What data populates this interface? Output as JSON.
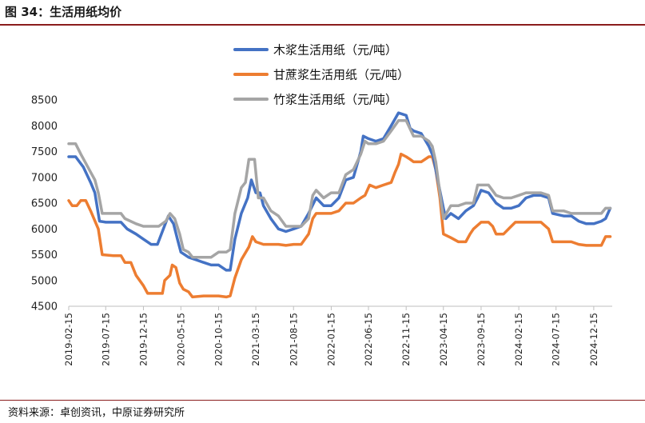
{
  "figure": {
    "title": "图 34：生活用纸均价",
    "source": "资料来源：卓创资讯，中原证券研究所"
  },
  "chart_data": {
    "type": "line",
    "title": "生活用纸均价",
    "xlabel": "",
    "ylabel": "",
    "ylim": [
      4500,
      8500
    ],
    "yticks": [
      4500,
      5000,
      5500,
      6000,
      6500,
      7000,
      7500,
      8000,
      8500
    ],
    "xticks": [
      "2019-02-15",
      "2019-07-15",
      "2019-12-15",
      "2020-05-15",
      "2020-10-15",
      "2021-03-15",
      "2021-08-15",
      "2022-01-15",
      "2022-06-15",
      "2022-11-15",
      "2023-04-15",
      "2023-09-15",
      "2024-02-15",
      "2024-07-15",
      "2024-12-15"
    ],
    "x_range": [
      "2019-02-15",
      "2025-02-28"
    ],
    "legend_position": "top-center",
    "grid": false,
    "series": [
      {
        "name": "木浆生活用纸（元/吨）",
        "color": "#4472C4",
        "points": [
          [
            "2019-02-15",
            7400
          ],
          [
            "2019-03-15",
            7400
          ],
          [
            "2019-04-15",
            7200
          ],
          [
            "2019-05-15",
            6900
          ],
          [
            "2019-06-01",
            6700
          ],
          [
            "2019-06-20",
            6150
          ],
          [
            "2019-07-15",
            6130
          ],
          [
            "2019-09-15",
            6130
          ],
          [
            "2019-10-10",
            6000
          ],
          [
            "2019-11-15",
            5900
          ],
          [
            "2019-12-15",
            5800
          ],
          [
            "2020-01-15",
            5700
          ],
          [
            "2020-02-10",
            5700
          ],
          [
            "2020-03-05",
            6000
          ],
          [
            "2020-03-25",
            6250
          ],
          [
            "2020-04-15",
            6100
          ],
          [
            "2020-05-01",
            5800
          ],
          [
            "2020-05-15",
            5550
          ],
          [
            "2020-06-15",
            5450
          ],
          [
            "2020-07-15",
            5400
          ],
          [
            "2020-08-15",
            5350
          ],
          [
            "2020-09-15",
            5300
          ],
          [
            "2020-10-15",
            5300
          ],
          [
            "2020-11-15",
            5200
          ],
          [
            "2020-12-01",
            5200
          ],
          [
            "2020-12-20",
            5800
          ],
          [
            "2021-01-15",
            6300
          ],
          [
            "2021-02-10",
            6600
          ],
          [
            "2021-02-25",
            6950
          ],
          [
            "2021-03-15",
            6700
          ],
          [
            "2021-04-01",
            6700
          ],
          [
            "2021-04-15",
            6450
          ],
          [
            "2021-05-15",
            6200
          ],
          [
            "2021-06-15",
            6000
          ],
          [
            "2021-07-15",
            5950
          ],
          [
            "2021-08-15",
            6000
          ],
          [
            "2021-09-15",
            6050
          ],
          [
            "2021-10-15",
            6300
          ],
          [
            "2021-11-15",
            6600
          ],
          [
            "2021-12-15",
            6450
          ],
          [
            "2022-01-15",
            6450
          ],
          [
            "2022-02-15",
            6600
          ],
          [
            "2022-03-15",
            6950
          ],
          [
            "2022-04-15",
            7000
          ],
          [
            "2022-05-15",
            7500
          ],
          [
            "2022-05-25",
            7800
          ],
          [
            "2022-06-15",
            7750
          ],
          [
            "2022-07-15",
            7700
          ],
          [
            "2022-08-15",
            7750
          ],
          [
            "2022-09-15",
            8000
          ],
          [
            "2022-10-15",
            8250
          ],
          [
            "2022-11-15",
            8200
          ],
          [
            "2022-12-01",
            7950
          ],
          [
            "2022-12-15",
            7900
          ],
          [
            "2023-01-15",
            7850
          ],
          [
            "2023-02-15",
            7600
          ],
          [
            "2023-03-05",
            7400
          ],
          [
            "2023-03-25",
            6900
          ],
          [
            "2023-04-15",
            6400
          ],
          [
            "2023-04-25",
            6200
          ],
          [
            "2023-05-15",
            6300
          ],
          [
            "2023-06-15",
            6200
          ],
          [
            "2023-07-15",
            6350
          ],
          [
            "2023-08-15",
            6450
          ],
          [
            "2023-09-01",
            6600
          ],
          [
            "2023-09-15",
            6750
          ],
          [
            "2023-10-15",
            6700
          ],
          [
            "2023-11-15",
            6500
          ],
          [
            "2023-12-15",
            6400
          ],
          [
            "2024-01-15",
            6400
          ],
          [
            "2024-02-15",
            6450
          ],
          [
            "2024-03-15",
            6600
          ],
          [
            "2024-04-15",
            6650
          ],
          [
            "2024-05-15",
            6650
          ],
          [
            "2024-06-15",
            6600
          ],
          [
            "2024-07-01",
            6300
          ],
          [
            "2024-08-15",
            6250
          ],
          [
            "2024-09-15",
            6250
          ],
          [
            "2024-10-15",
            6150
          ],
          [
            "2024-11-15",
            6100
          ],
          [
            "2024-12-15",
            6100
          ],
          [
            "2025-01-15",
            6150
          ],
          [
            "2025-02-01",
            6200
          ],
          [
            "2025-02-20",
            6400
          ]
        ]
      },
      {
        "name": "甘蔗浆生活用纸（元/吨）",
        "color": "#ED7D31",
        "points": [
          [
            "2019-02-15",
            6550
          ],
          [
            "2019-03-01",
            6450
          ],
          [
            "2019-03-20",
            6450
          ],
          [
            "2019-04-05",
            6550
          ],
          [
            "2019-04-25",
            6550
          ],
          [
            "2019-05-15",
            6350
          ],
          [
            "2019-06-15",
            6000
          ],
          [
            "2019-07-01",
            5500
          ],
          [
            "2019-08-15",
            5480
          ],
          [
            "2019-09-15",
            5480
          ],
          [
            "2019-10-01",
            5350
          ],
          [
            "2019-10-25",
            5350
          ],
          [
            "2019-11-15",
            5100
          ],
          [
            "2019-12-15",
            4900
          ],
          [
            "2020-01-01",
            4750
          ],
          [
            "2020-02-15",
            4750
          ],
          [
            "2020-03-01",
            4750
          ],
          [
            "2020-03-10",
            5000
          ],
          [
            "2020-04-01",
            5100
          ],
          [
            "2020-04-10",
            5300
          ],
          [
            "2020-04-25",
            5250
          ],
          [
            "2020-05-10",
            4950
          ],
          [
            "2020-05-25",
            4830
          ],
          [
            "2020-06-15",
            4780
          ],
          [
            "2020-07-01",
            4680
          ],
          [
            "2020-08-15",
            4700
          ],
          [
            "2020-09-15",
            4700
          ],
          [
            "2020-10-15",
            4700
          ],
          [
            "2020-11-15",
            4680
          ],
          [
            "2020-12-01",
            4700
          ],
          [
            "2020-12-20",
            5050
          ],
          [
            "2021-01-15",
            5400
          ],
          [
            "2021-02-15",
            5650
          ],
          [
            "2021-03-01",
            5850
          ],
          [
            "2021-03-15",
            5750
          ],
          [
            "2021-04-15",
            5700
          ],
          [
            "2021-05-15",
            5700
          ],
          [
            "2021-06-15",
            5700
          ],
          [
            "2021-07-15",
            5680
          ],
          [
            "2021-08-15",
            5700
          ],
          [
            "2021-09-15",
            5700
          ],
          [
            "2021-10-15",
            5900
          ],
          [
            "2021-11-01",
            6200
          ],
          [
            "2021-11-15",
            6300
          ],
          [
            "2021-12-15",
            6300
          ],
          [
            "2022-01-15",
            6300
          ],
          [
            "2022-02-15",
            6350
          ],
          [
            "2022-03-15",
            6500
          ],
          [
            "2022-04-15",
            6500
          ],
          [
            "2022-05-15",
            6600
          ],
          [
            "2022-06-01",
            6650
          ],
          [
            "2022-06-20",
            6850
          ],
          [
            "2022-07-15",
            6800
          ],
          [
            "2022-08-15",
            6850
          ],
          [
            "2022-09-15",
            6900
          ],
          [
            "2022-10-01",
            7100
          ],
          [
            "2022-10-15",
            7250
          ],
          [
            "2022-10-25",
            7450
          ],
          [
            "2022-11-15",
            7400
          ],
          [
            "2022-12-01",
            7350
          ],
          [
            "2022-12-15",
            7300
          ],
          [
            "2023-01-15",
            7300
          ],
          [
            "2023-02-15",
            7400
          ],
          [
            "2023-03-01",
            7400
          ],
          [
            "2023-03-15",
            7150
          ],
          [
            "2023-04-01",
            6600
          ],
          [
            "2023-04-15",
            5900
          ],
          [
            "2023-05-15",
            5830
          ],
          [
            "2023-06-15",
            5750
          ],
          [
            "2023-07-15",
            5750
          ],
          [
            "2023-08-01",
            5900
          ],
          [
            "2023-08-15",
            6000
          ],
          [
            "2023-09-15",
            6130
          ],
          [
            "2023-10-15",
            6130
          ],
          [
            "2023-11-01",
            6050
          ],
          [
            "2023-11-15",
            5900
          ],
          [
            "2023-12-15",
            5900
          ],
          [
            "2024-01-15",
            6050
          ],
          [
            "2024-02-01",
            6130
          ],
          [
            "2024-03-15",
            6130
          ],
          [
            "2024-04-15",
            6130
          ],
          [
            "2024-05-15",
            6130
          ],
          [
            "2024-06-15",
            6000
          ],
          [
            "2024-07-01",
            5750
          ],
          [
            "2024-08-15",
            5750
          ],
          [
            "2024-09-15",
            5750
          ],
          [
            "2024-10-15",
            5700
          ],
          [
            "2024-11-15",
            5680
          ],
          [
            "2024-12-15",
            5680
          ],
          [
            "2025-01-15",
            5680
          ],
          [
            "2025-02-01",
            5850
          ],
          [
            "2025-02-20",
            5850
          ]
        ]
      },
      {
        "name": "竹浆生活用纸（元/吨）",
        "color": "#A5A5A5",
        "points": [
          [
            "2019-02-15",
            7650
          ],
          [
            "2019-03-15",
            7650
          ],
          [
            "2019-04-05",
            7450
          ],
          [
            "2019-05-15",
            7100
          ],
          [
            "2019-06-01",
            6950
          ],
          [
            "2019-06-15",
            6700
          ],
          [
            "2019-07-01",
            6300
          ],
          [
            "2019-08-15",
            6300
          ],
          [
            "2019-09-15",
            6300
          ],
          [
            "2019-10-01",
            6200
          ],
          [
            "2019-11-15",
            6100
          ],
          [
            "2019-12-15",
            6050
          ],
          [
            "2020-01-15",
            6050
          ],
          [
            "2020-02-15",
            6050
          ],
          [
            "2020-03-15",
            6150
          ],
          [
            "2020-04-01",
            6300
          ],
          [
            "2020-04-20",
            6200
          ],
          [
            "2020-05-10",
            5900
          ],
          [
            "2020-05-25",
            5600
          ],
          [
            "2020-06-15",
            5550
          ],
          [
            "2020-07-01",
            5450
          ],
          [
            "2020-08-15",
            5450
          ],
          [
            "2020-09-15",
            5450
          ],
          [
            "2020-10-15",
            5550
          ],
          [
            "2020-11-15",
            5550
          ],
          [
            "2020-12-01",
            5600
          ],
          [
            "2020-12-20",
            6300
          ],
          [
            "2021-01-15",
            6800
          ],
          [
            "2021-02-01",
            6900
          ],
          [
            "2021-02-15",
            7350
          ],
          [
            "2021-03-10",
            7350
          ],
          [
            "2021-03-25",
            6600
          ],
          [
            "2021-04-15",
            6600
          ],
          [
            "2021-05-15",
            6350
          ],
          [
            "2021-06-15",
            6250
          ],
          [
            "2021-07-15",
            6050
          ],
          [
            "2021-08-15",
            6050
          ],
          [
            "2021-09-15",
            6050
          ],
          [
            "2021-10-15",
            6200
          ],
          [
            "2021-11-01",
            6650
          ],
          [
            "2021-11-15",
            6750
          ],
          [
            "2021-12-15",
            6600
          ],
          [
            "2022-01-15",
            6700
          ],
          [
            "2022-02-15",
            6700
          ],
          [
            "2022-03-15",
            7050
          ],
          [
            "2022-04-15",
            7150
          ],
          [
            "2022-05-15",
            7450
          ],
          [
            "2022-06-01",
            7700
          ],
          [
            "2022-06-15",
            7650
          ],
          [
            "2022-07-15",
            7650
          ],
          [
            "2022-08-15",
            7700
          ],
          [
            "2022-09-15",
            7900
          ],
          [
            "2022-10-15",
            8100
          ],
          [
            "2022-11-15",
            8100
          ],
          [
            "2022-12-15",
            7800
          ],
          [
            "2023-01-15",
            7800
          ],
          [
            "2023-02-15",
            7700
          ],
          [
            "2023-03-01",
            7600
          ],
          [
            "2023-03-15",
            7300
          ],
          [
            "2023-04-01",
            6700
          ],
          [
            "2023-04-15",
            6200
          ],
          [
            "2023-05-15",
            6450
          ],
          [
            "2023-06-15",
            6450
          ],
          [
            "2023-07-15",
            6500
          ],
          [
            "2023-08-15",
            6500
          ],
          [
            "2023-09-01",
            6850
          ],
          [
            "2023-09-15",
            6850
          ],
          [
            "2023-10-15",
            6850
          ],
          [
            "2023-11-15",
            6650
          ],
          [
            "2023-12-15",
            6600
          ],
          [
            "2024-01-15",
            6600
          ],
          [
            "2024-02-15",
            6650
          ],
          [
            "2024-03-15",
            6700
          ],
          [
            "2024-04-15",
            6700
          ],
          [
            "2024-05-15",
            6700
          ],
          [
            "2024-06-15",
            6650
          ],
          [
            "2024-07-01",
            6350
          ],
          [
            "2024-08-15",
            6350
          ],
          [
            "2024-09-15",
            6300
          ],
          [
            "2024-10-15",
            6300
          ],
          [
            "2024-11-15",
            6300
          ],
          [
            "2024-12-15",
            6300
          ],
          [
            "2025-01-15",
            6300
          ],
          [
            "2025-02-01",
            6400
          ],
          [
            "2025-02-20",
            6400
          ]
        ]
      }
    ]
  }
}
